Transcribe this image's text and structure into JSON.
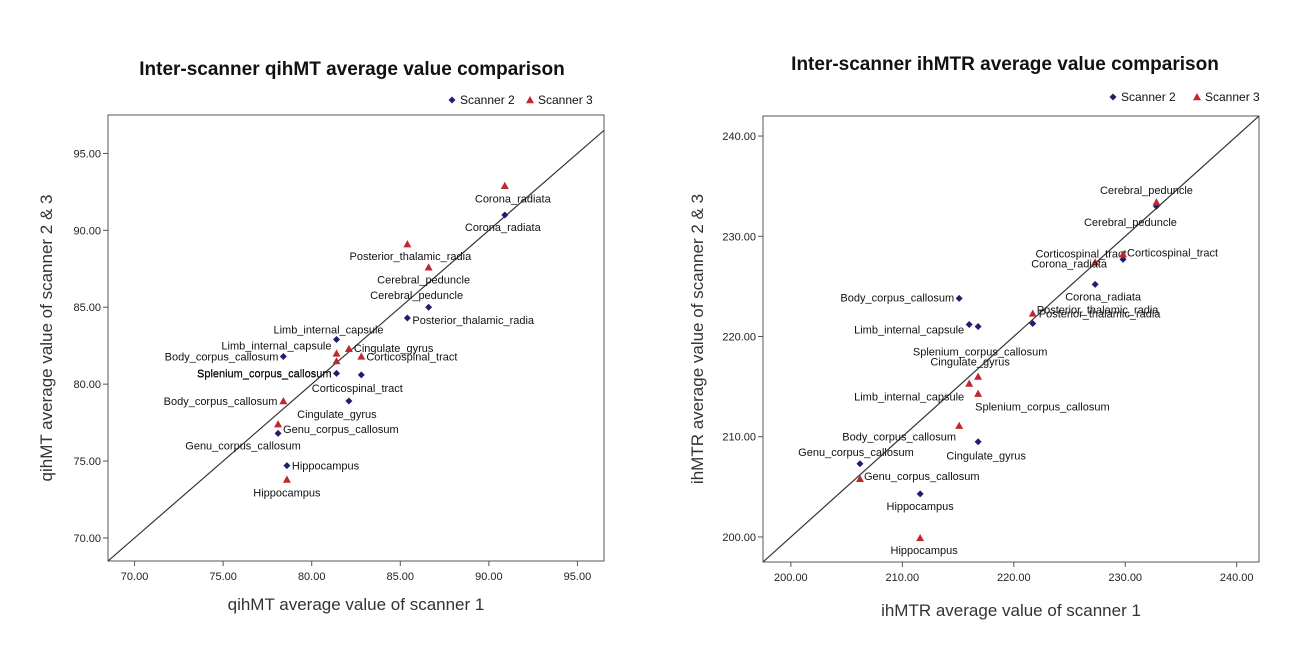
{
  "chart_data": [
    {
      "type": "scatter",
      "title": "Inter-scanner qihMT average value comparison",
      "xlabel": "qihMT average value of scanner 1",
      "ylabel": "qihMT average value of scanner 2 & 3",
      "xlim": [
        68.5,
        96.5
      ],
      "ylim": [
        68.5,
        97.5
      ],
      "xticks": [
        "70.00",
        "75.00",
        "80.00",
        "85.00",
        "90.00",
        "95.00"
      ],
      "yticks": [
        "70.00",
        "75.00",
        "80.00",
        "85.00",
        "90.00",
        "95.00"
      ],
      "identity_line": true,
      "legend": "top-right",
      "colors": {
        "scanner2": "#1f1f6e",
        "scanner3": "#c0282d"
      },
      "series": [
        {
          "name": "Scanner 2",
          "points": [
            {
              "label": "Corona_radiata",
              "x": 90.9,
              "y": 91.0
            },
            {
              "label": "Cerebral_peduncle",
              "x": 86.6,
              "y": 85.0
            },
            {
              "label": "Posterior_thalamic_radia",
              "x": 85.4,
              "y": 84.3
            },
            {
              "label": "Limb_internal_capsule",
              "x": 81.4,
              "y": 82.9
            },
            {
              "label": "Body_corpus_callosum",
              "x": 78.4,
              "y": 81.8
            },
            {
              "label": "Splenium_corpus_callosum",
              "x": 81.4,
              "y": 80.7
            },
            {
              "label": "Corticospinal_tract",
              "x": 82.8,
              "y": 80.6
            },
            {
              "label": "Cingulate_gyrus",
              "x": 82.1,
              "y": 78.9
            },
            {
              "label": "Genu_corpus_callosum",
              "x": 78.1,
              "y": 76.8
            },
            {
              "label": "Hippocampus",
              "x": 78.6,
              "y": 74.7
            }
          ]
        },
        {
          "name": "Scanner 3",
          "points": [
            {
              "label": "Corona_radiata",
              "x": 90.9,
              "y": 92.9
            },
            {
              "label": "Posterior_thalamic_radia",
              "x": 85.4,
              "y": 89.1
            },
            {
              "label": "Cerebral_peduncle",
              "x": 86.6,
              "y": 87.6
            },
            {
              "label": "Cingulate_gyrus",
              "x": 82.1,
              "y": 82.3
            },
            {
              "label": "Corticospinal_tract",
              "x": 82.8,
              "y": 81.8
            },
            {
              "label": "Limb_internal_capsule",
              "x": 81.4,
              "y": 82.0
            },
            {
              "label": "Splenium_corpus_callosum",
              "x": 81.4,
              "y": 81.5
            },
            {
              "label": "Body_corpus_callosum",
              "x": 78.4,
              "y": 78.9
            },
            {
              "label": "Genu_corpus_callosum",
              "x": 78.1,
              "y": 77.4
            },
            {
              "label": "Hippocampus",
              "x": 78.6,
              "y": 73.8
            }
          ]
        }
      ]
    },
    {
      "type": "scatter",
      "title": "Inter-scanner ihMTR average value comparison",
      "xlabel": "ihMTR average value of scanner 1",
      "ylabel": "ihMTR average value of scanner 2 & 3",
      "xlim": [
        197.5,
        242
      ],
      "ylim": [
        197.5,
        242
      ],
      "xticks": [
        "200.00",
        "210.00",
        "220.00",
        "230.00",
        "240.00"
      ],
      "yticks": [
        "200.00",
        "210.00",
        "220.00",
        "230.00",
        "240.00"
      ],
      "identity_line": true,
      "legend": "top-right",
      "colors": {
        "scanner2": "#1f1f6e",
        "scanner3": "#c0282d"
      },
      "series": [
        {
          "name": "Scanner 2",
          "points": [
            {
              "label": "Cerebral_peduncle",
              "x": 232.8,
              "y": 233.0
            },
            {
              "label": "Corticospinal_tract",
              "x": 229.8,
              "y": 227.7
            },
            {
              "label": "Corona_radiata",
              "x": 227.3,
              "y": 225.2
            },
            {
              "label": "Body_corpus_callosum",
              "x": 215.1,
              "y": 223.8
            },
            {
              "label": "Posterior_thalamic_radia",
              "x": 221.7,
              "y": 221.3
            },
            {
              "label": "Limb_internal_capsule",
              "x": 216.0,
              "y": 221.2
            },
            {
              "label": "Splenium_corpus_callosum",
              "x": 216.8,
              "y": 221.0
            },
            {
              "label": "Cingulate_gyrus",
              "x": 216.8,
              "y": 209.5
            },
            {
              "label": "Genu_corpus_callosum",
              "x": 206.2,
              "y": 207.3
            },
            {
              "label": "Hippocampus",
              "x": 211.6,
              "y": 204.3
            }
          ]
        },
        {
          "name": "Scanner 3",
          "points": [
            {
              "label": "Cerebral_peduncle",
              "x": 232.8,
              "y": 233.4
            },
            {
              "label": "Corticospinal_tract",
              "x": 229.8,
              "y": 228.2
            },
            {
              "label": "Corona_radiata",
              "x": 227.3,
              "y": 227.4
            },
            {
              "label": "Posterior_thalamic_radia",
              "x": 221.7,
              "y": 222.3
            },
            {
              "label": "Cingulate_gyrus",
              "x": 216.8,
              "y": 216.0
            },
            {
              "label": "Limb_internal_capsule",
              "x": 216.0,
              "y": 215.3
            },
            {
              "label": "Splenium_corpus_callosum",
              "x": 216.8,
              "y": 214.3
            },
            {
              "label": "Body_corpus_callosum",
              "x": 215.1,
              "y": 211.1
            },
            {
              "label": "Genu_corpus_callosum",
              "x": 206.2,
              "y": 205.8
            },
            {
              "label": "Hippocampus",
              "x": 211.6,
              "y": 199.9
            }
          ]
        }
      ]
    }
  ]
}
